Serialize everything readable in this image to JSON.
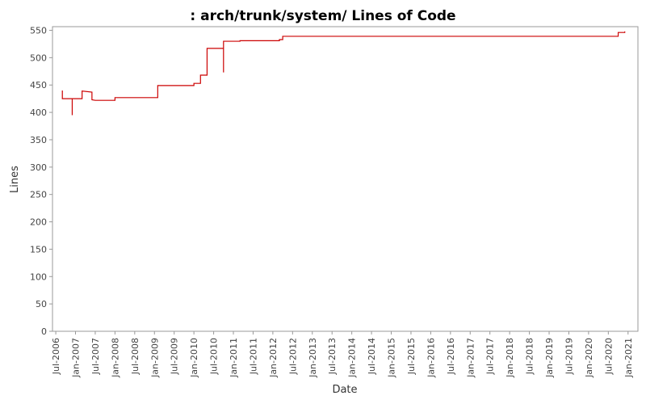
{
  "chart_data": {
    "type": "line",
    "title": ": arch/trunk/system/ Lines of Code",
    "x_label": "Date",
    "y_label": "Lines",
    "x": [
      "2006-09",
      "2006-09",
      "2006-12",
      "2006-12",
      "2006-12",
      "2007-03",
      "2007-03",
      "2007-06",
      "2007-06",
      "2007-07",
      "2008-01",
      "2008-01",
      "2009-02",
      "2009-02",
      "2010-01",
      "2010-01",
      "2010-03",
      "2010-03",
      "2010-05",
      "2010-05",
      "2010-10",
      "2010-10",
      "2010-10",
      "2011-03",
      "2011-03",
      "2012-03",
      "2012-03",
      "2012-04",
      "2012-04",
      "2020-10",
      "2020-10",
      "2020-12",
      "2020-12"
    ],
    "series": [
      {
        "name": "Lines",
        "color": "#cc0000",
        "values": [
          440,
          425,
          425,
          395,
          425,
          425,
          439,
          437,
          423,
          422,
          422,
          427,
          427,
          449,
          449,
          453,
          453,
          468,
          468,
          517,
          517,
          473,
          530,
          530,
          531,
          531,
          533,
          533,
          539,
          539,
          546,
          546,
          548
        ]
      }
    ],
    "xlim": [
      "2006-06",
      "2021-04"
    ],
    "xticks": [
      {
        "value": "2006-07",
        "label": "Jul-2006"
      },
      {
        "value": "2007-01",
        "label": "Jan-2007"
      },
      {
        "value": "2007-07",
        "label": "Jul-2007"
      },
      {
        "value": "2008-01",
        "label": "Jan-2008"
      },
      {
        "value": "2008-07",
        "label": "Jul-2008"
      },
      {
        "value": "2009-01",
        "label": "Jan-2009"
      },
      {
        "value": "2009-07",
        "label": "Jul-2009"
      },
      {
        "value": "2010-01",
        "label": "Jan-2010"
      },
      {
        "value": "2010-07",
        "label": "Jul-2010"
      },
      {
        "value": "2011-01",
        "label": "Jan-2011"
      },
      {
        "value": "2011-07",
        "label": "Jul-2011"
      },
      {
        "value": "2012-01",
        "label": "Jan-2012"
      },
      {
        "value": "2012-07",
        "label": "Jul-2012"
      },
      {
        "value": "2013-01",
        "label": "Jan-2013"
      },
      {
        "value": "2013-07",
        "label": "Jul-2013"
      },
      {
        "value": "2014-01",
        "label": "Jan-2014"
      },
      {
        "value": "2014-07",
        "label": "Jul-2014"
      },
      {
        "value": "2015-01",
        "label": "Jan-2015"
      },
      {
        "value": "2015-07",
        "label": "Jul-2015"
      },
      {
        "value": "2016-01",
        "label": "Jan-2016"
      },
      {
        "value": "2016-07",
        "label": "Jul-2016"
      },
      {
        "value": "2017-01",
        "label": "Jan-2017"
      },
      {
        "value": "2017-07",
        "label": "Jul-2017"
      },
      {
        "value": "2018-01",
        "label": "Jan-2018"
      },
      {
        "value": "2018-07",
        "label": "Jul-2018"
      },
      {
        "value": "2019-01",
        "label": "Jan-2019"
      },
      {
        "value": "2019-07",
        "label": "Jul-2019"
      },
      {
        "value": "2020-01",
        "label": "Jan-2020"
      },
      {
        "value": "2020-07",
        "label": "Jul-2020"
      },
      {
        "value": "2021-01",
        "label": "Jan-2021"
      }
    ],
    "ylim": [
      0,
      550
    ],
    "yticks": [
      0,
      50,
      100,
      150,
      200,
      250,
      300,
      350,
      400,
      450,
      500,
      550
    ],
    "grid": false
  }
}
